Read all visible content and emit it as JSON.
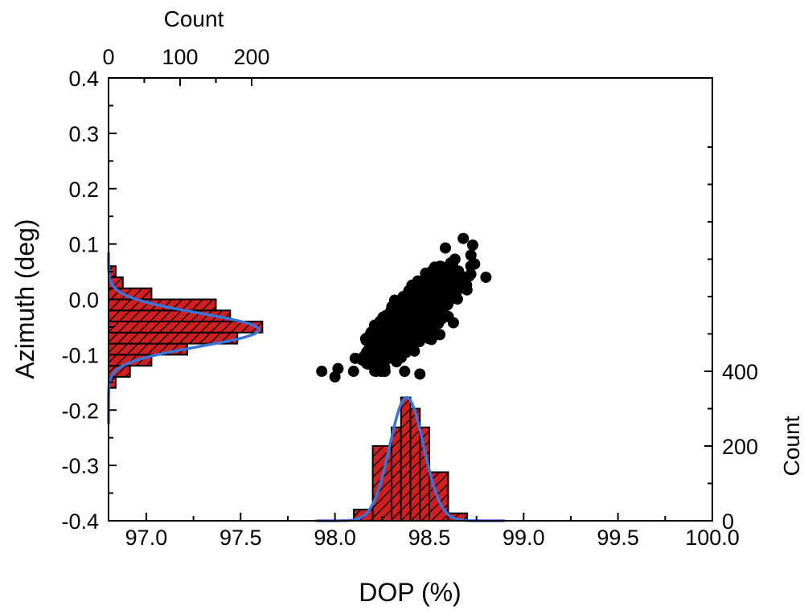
{
  "chart_data": {
    "type": "scatter",
    "xlabel": "DOP (%)",
    "ylabel": "Azimuth (deg)",
    "xlim": [
      96.8,
      100.0
    ],
    "ylim": [
      -0.4,
      0.4
    ],
    "x_ticks": [
      "97.0",
      "97.5",
      "98.0",
      "98.5",
      "99.0",
      "99.5",
      "100.0"
    ],
    "y_ticks": [
      "-0.4",
      "-0.3",
      "-0.2",
      "-0.1",
      "0.0",
      "0.1",
      "0.2",
      "0.3",
      "0.4"
    ],
    "grid": false,
    "scatter": {
      "color": "#000000",
      "center": [
        98.42,
        -0.03
      ],
      "spread": [
        0.1,
        0.035
      ],
      "correlation": 0.75,
      "count": 1500,
      "outliers": [
        [
          97.93,
          -0.13
        ],
        [
          98.0,
          -0.14
        ],
        [
          98.45,
          -0.135
        ],
        [
          98.8,
          0.04
        ],
        [
          98.73,
          0.098
        ],
        [
          98.68,
          0.11
        ],
        [
          98.72,
          0.06
        ]
      ]
    },
    "top_histogram": {
      "orientation": "horizontal",
      "axis_label": "Count",
      "axis_ticks": [
        "0",
        "100",
        "200"
      ],
      "count_range": [
        0,
        200
      ],
      "bin_edges": [
        -0.16,
        -0.14,
        -0.12,
        -0.1,
        -0.08,
        -0.06,
        -0.04,
        -0.02,
        0.0,
        0.02,
        0.04,
        0.06
      ],
      "counts": [
        10,
        30,
        60,
        110,
        180,
        215,
        170,
        150,
        60,
        20,
        10
      ],
      "fit": {
        "type": "gaussian",
        "mean": -0.055,
        "sigma": 0.03,
        "peak": 210,
        "baseline": 0,
        "y_range": [
          -0.225,
          0.085
        ]
      },
      "bar_color": "#d11f1f",
      "fit_color": "#3b73d8"
    },
    "right_histogram": {
      "orientation": "vertical",
      "axis_label": "Count",
      "axis_ticks": [
        "0",
        "200",
        "400"
      ],
      "count_range": [
        0,
        400
      ],
      "bin_edges": [
        98.1,
        98.2,
        98.3,
        98.35,
        98.4,
        98.45,
        98.5,
        98.6,
        98.7
      ],
      "counts": [
        30,
        200,
        250,
        330,
        300,
        250,
        130,
        20
      ],
      "fit": {
        "type": "gaussian",
        "mean": 98.38,
        "sigma": 0.09,
        "peak": 330,
        "baseline": 0,
        "x_range": [
          97.9,
          98.9
        ]
      },
      "bar_color": "#d11f1f",
      "fit_color": "#3b73d8"
    }
  }
}
